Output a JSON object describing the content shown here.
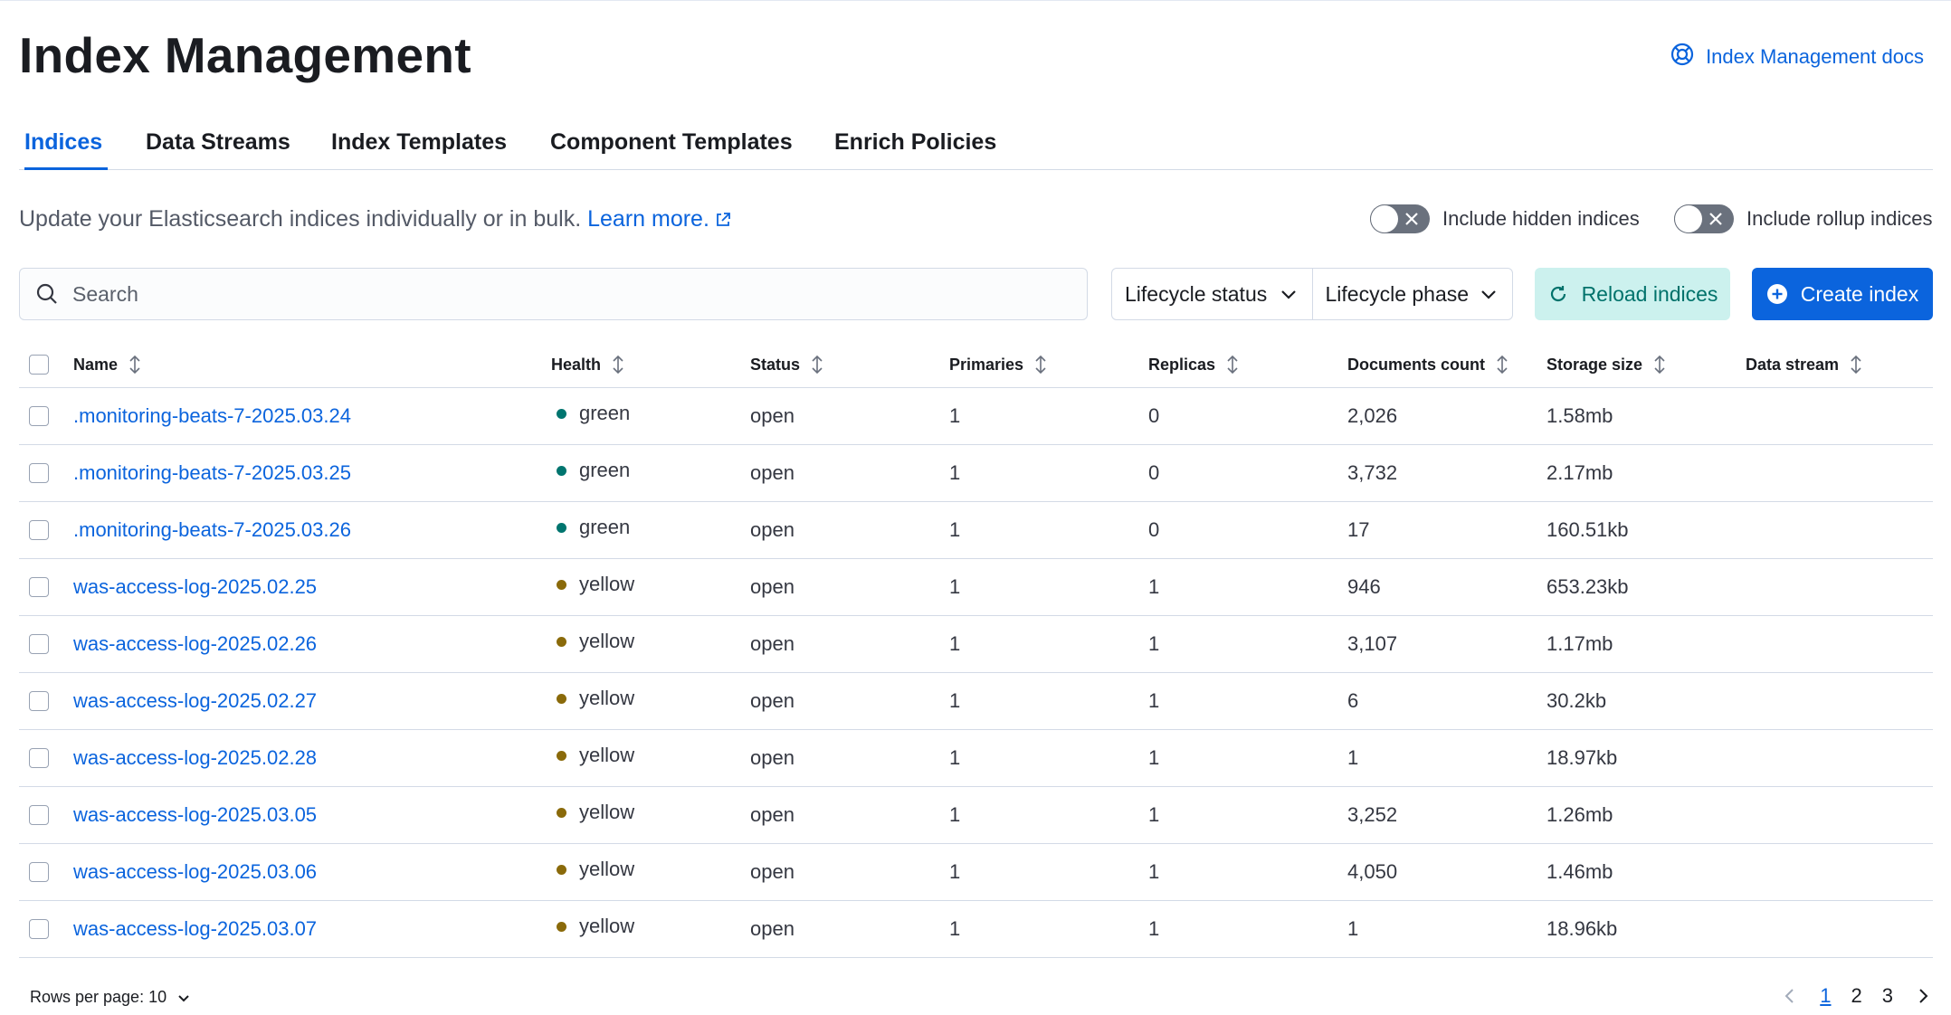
{
  "header": {
    "title": "Index Management",
    "docs_link": "Index Management docs"
  },
  "tabs": [
    {
      "label": "Indices",
      "active": true
    },
    {
      "label": "Data Streams"
    },
    {
      "label": "Index Templates"
    },
    {
      "label": "Component Templates"
    },
    {
      "label": "Enrich Policies"
    }
  ],
  "description": {
    "text": "Update your Elasticsearch indices individually or in bulk.",
    "link": "Learn more."
  },
  "toggles": {
    "hidden": {
      "label": "Include hidden indices",
      "checked": false
    },
    "rollup": {
      "label": "Include rollup indices",
      "checked": false
    }
  },
  "search": {
    "placeholder": "Search",
    "value": ""
  },
  "filters": {
    "lifecycle_status": "Lifecycle status",
    "lifecycle_phase": "Lifecycle phase"
  },
  "buttons": {
    "reload": "Reload indices",
    "create": "Create index"
  },
  "table": {
    "columns": {
      "name": "Name",
      "health": "Health",
      "status": "Status",
      "primaries": "Primaries",
      "replicas": "Replicas",
      "docs": "Documents count",
      "storage": "Storage size",
      "stream": "Data stream"
    },
    "rows": [
      {
        "name": ".monitoring-beats-7-2025.03.24",
        "health": "green",
        "status": "open",
        "primaries": "1",
        "replicas": "0",
        "docs": "2,026",
        "storage": "1.58mb",
        "stream": ""
      },
      {
        "name": ".monitoring-beats-7-2025.03.25",
        "health": "green",
        "status": "open",
        "primaries": "1",
        "replicas": "0",
        "docs": "3,732",
        "storage": "2.17mb",
        "stream": ""
      },
      {
        "name": ".monitoring-beats-7-2025.03.26",
        "health": "green",
        "status": "open",
        "primaries": "1",
        "replicas": "0",
        "docs": "17",
        "storage": "160.51kb",
        "stream": ""
      },
      {
        "name": "was-access-log-2025.02.25",
        "health": "yellow",
        "status": "open",
        "primaries": "1",
        "replicas": "1",
        "docs": "946",
        "storage": "653.23kb",
        "stream": ""
      },
      {
        "name": "was-access-log-2025.02.26",
        "health": "yellow",
        "status": "open",
        "primaries": "1",
        "replicas": "1",
        "docs": "3,107",
        "storage": "1.17mb",
        "stream": ""
      },
      {
        "name": "was-access-log-2025.02.27",
        "health": "yellow",
        "status": "open",
        "primaries": "1",
        "replicas": "1",
        "docs": "6",
        "storage": "30.2kb",
        "stream": ""
      },
      {
        "name": "was-access-log-2025.02.28",
        "health": "yellow",
        "status": "open",
        "primaries": "1",
        "replicas": "1",
        "docs": "1",
        "storage": "18.97kb",
        "stream": ""
      },
      {
        "name": "was-access-log-2025.03.05",
        "health": "yellow",
        "status": "open",
        "primaries": "1",
        "replicas": "1",
        "docs": "3,252",
        "storage": "1.26mb",
        "stream": ""
      },
      {
        "name": "was-access-log-2025.03.06",
        "health": "yellow",
        "status": "open",
        "primaries": "1",
        "replicas": "1",
        "docs": "4,050",
        "storage": "1.46mb",
        "stream": ""
      },
      {
        "name": "was-access-log-2025.03.07",
        "health": "yellow",
        "status": "open",
        "primaries": "1",
        "replicas": "1",
        "docs": "1",
        "storage": "18.96kb",
        "stream": ""
      }
    ]
  },
  "health_colors": {
    "green": "#00756f",
    "yellow": "#8a6a0a"
  },
  "footer": {
    "rows_per_page": "Rows per page: 10",
    "pages": [
      "1",
      "2",
      "3"
    ],
    "current_page": "1"
  }
}
